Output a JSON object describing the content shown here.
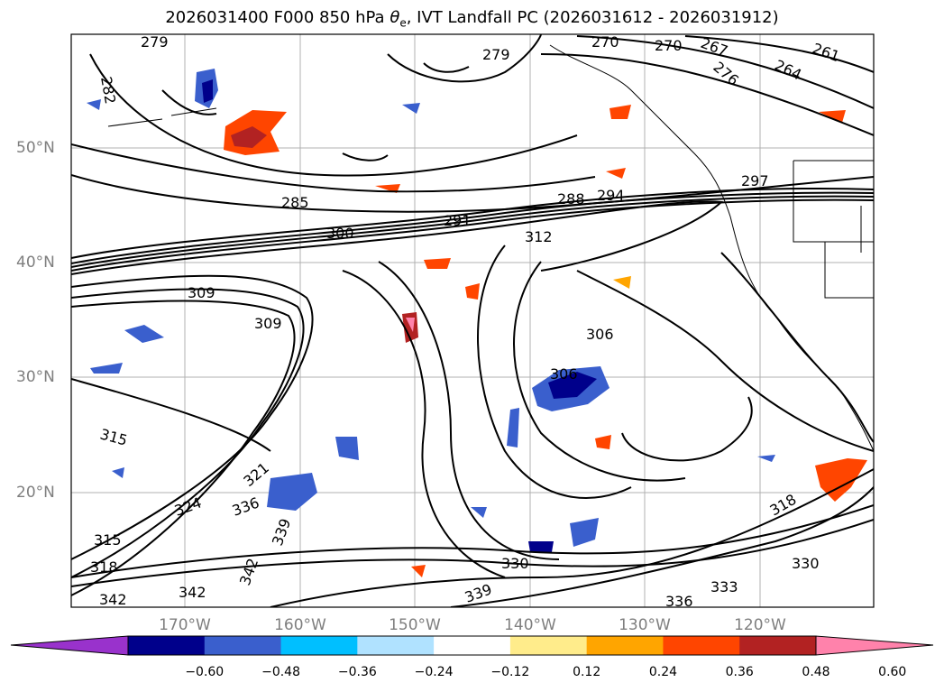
{
  "title_prefix": "2026031400 F000 850 hPa ",
  "title_var": "θ",
  "title_sub": "e",
  "title_suffix": ", IVT Landfall PC (2026031612 - 2026031912)",
  "lat_labels": [
    "50°N",
    "40°N",
    "30°N",
    "20°N"
  ],
  "lon_labels": [
    "170°W",
    "160°W",
    "150°W",
    "140°W",
    "130°W",
    "120°W"
  ],
  "colorbar": {
    "colors": [
      "#9932cc",
      "#00008b",
      "#3a5fcd",
      "#00bfff",
      "#b0e2ff",
      "#ffffff",
      "#ffec8b",
      "#ffa500",
      "#ff4500",
      "#b22222",
      "#ff82ab"
    ],
    "ticks": [
      "−0.60",
      "−0.48",
      "−0.36",
      "−0.24",
      "−0.12",
      "0.12",
      "0.24",
      "0.36",
      "0.48",
      "0.60"
    ]
  },
  "contour_labels": [
    "279",
    "282",
    "270",
    "270",
    "267",
    "276",
    "261",
    "264",
    "279",
    "285",
    "291",
    "288",
    "294",
    "297",
    "300",
    "312",
    "309",
    "309",
    "306",
    "306",
    "315",
    "321",
    "324",
    "336",
    "339",
    "342",
    "342",
    "330",
    "339",
    "318",
    "330",
    "333",
    "336",
    "342",
    "315",
    "318"
  ]
}
